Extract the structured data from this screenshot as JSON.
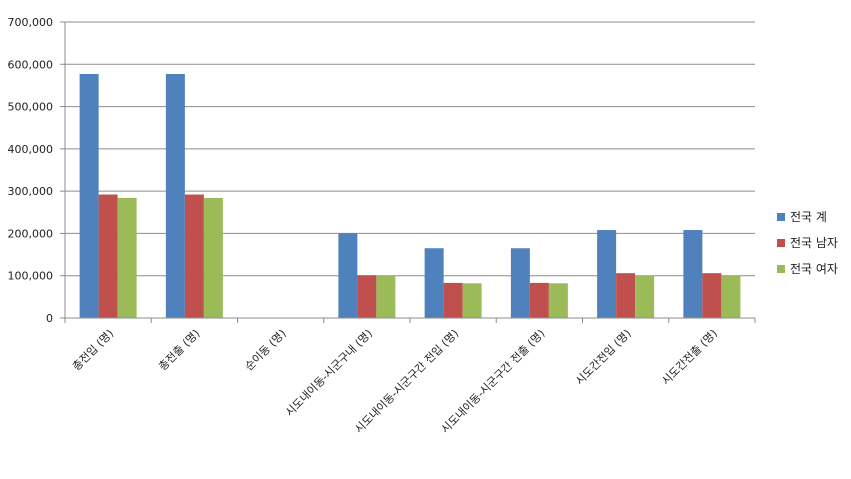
{
  "chart_data": {
    "type": "bar",
    "categories": [
      "총전입 (명)",
      "총전출 (명)",
      "순이동 (명)",
      "시도내이동-시군구내 (명)",
      "시도내이동-시군구간 전입 (명)",
      "시도내이동-시군구간 전출 (명)",
      "시도간전입 (명)",
      "시도간전출 (명)"
    ],
    "series": [
      {
        "name": "전국 계",
        "color": "#4f81bd",
        "values": [
          577000,
          577000,
          0,
          200000,
          165000,
          165000,
          208000,
          208000
        ]
      },
      {
        "name": "전국 남자",
        "color": "#c0504d",
        "values": [
          292000,
          292000,
          0,
          101000,
          83000,
          83000,
          106000,
          106000
        ]
      },
      {
        "name": "전국 여자",
        "color": "#9bbb59",
        "values": [
          284000,
          284000,
          0,
          100000,
          82000,
          82000,
          101000,
          101000
        ]
      }
    ],
    "yticks": [
      "0",
      "100,000",
      "200,000",
      "300,000",
      "400,000",
      "500,000",
      "600,000",
      "700,000"
    ],
    "ylim": [
      0,
      700000
    ],
    "grid": true,
    "legend": "right"
  }
}
